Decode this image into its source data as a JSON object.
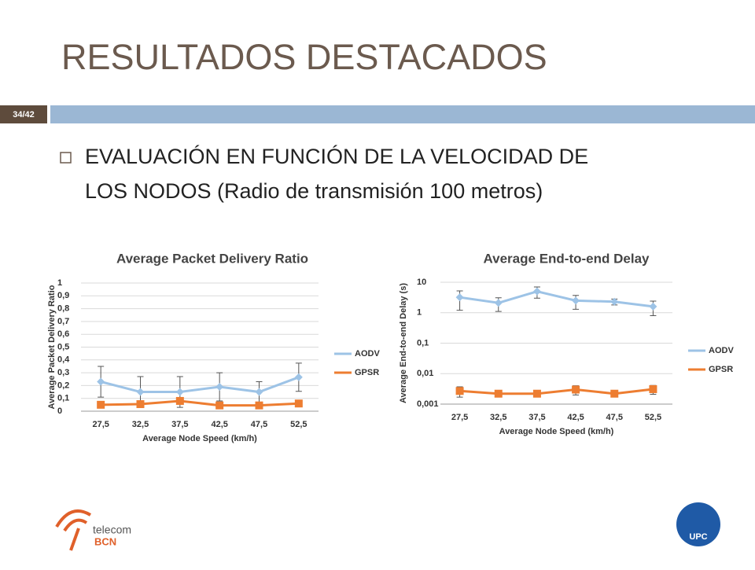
{
  "header": {
    "title": "RESULTADOS DESTACADOS",
    "page": "34/42"
  },
  "bullet": {
    "lines": [
      "EVALUACIÓN EN FUNCIÓN DE LA VELOCIDAD DE",
      "LOS NODOS (Radio de transmisión 100 metros)"
    ]
  },
  "logos": {
    "telecom": "telecom",
    "bcn": "BCN",
    "upc": "UPC"
  },
  "chart_data": [
    {
      "type": "line",
      "title": "Average Packet Delivery Ratio",
      "x_label": "Average Node Speed (km/h)",
      "y_label": "Average Packet Delivery Ratio",
      "categories": [
        "27,5",
        "32,5",
        "37,5",
        "42,5",
        "47,5",
        "52,5"
      ],
      "series": [
        {
          "name": "AODV",
          "color": "#9dc3e6",
          "marker": "diamond",
          "values": [
            0.23,
            0.15,
            0.15,
            0.19,
            0.15,
            0.265
          ],
          "errors": [
            0.12,
            0.12,
            0.12,
            0.11,
            0.08,
            0.11
          ]
        },
        {
          "name": "GPSR",
          "color": "#ed7d31",
          "marker": "square",
          "values": [
            0.05,
            0.055,
            0.08,
            0.045,
            0.045,
            0.06
          ],
          "errors": [
            0.02,
            0.02,
            0.02,
            0.02,
            0.015,
            0.02
          ]
        }
      ],
      "ylim": [
        0,
        1
      ],
      "yticks": [
        0,
        {
          "value": 0.1,
          "label": "0,1"
        },
        {
          "value": 0.2,
          "label": "0,2"
        },
        {
          "value": 0.3,
          "label": "0,3"
        },
        {
          "value": 0.4,
          "label": "0,4"
        },
        {
          "value": 0.5,
          "label": "0,5"
        },
        {
          "value": 0.6,
          "label": "0,6"
        },
        {
          "value": 0.7,
          "label": "0,7"
        },
        {
          "value": 0.8,
          "label": "0,8"
        },
        {
          "value": 0.9,
          "label": "0,9"
        },
        1
      ],
      "log_scale": false,
      "grid": true,
      "legend": "right"
    },
    {
      "type": "line",
      "title": "Average End-to-end Delay",
      "x_label": "Average Node Speed (km/h)",
      "y_label": "Average End-to-end Delay (s)",
      "categories": [
        "27,5",
        "32,5",
        "37,5",
        "42,5",
        "47,5",
        "52,5"
      ],
      "series": [
        {
          "name": "AODV",
          "color": "#9dc3e6",
          "marker": "diamond",
          "values": [
            3.2,
            2.1,
            5,
            2.5,
            2.3,
            1.6
          ],
          "errors": [
            2,
            1,
            2,
            1.2,
            0.5,
            0.8
          ]
        },
        {
          "name": "GPSR",
          "color": "#ed7d31",
          "marker": "square",
          "values": [
            0.0027,
            0.0022,
            0.0022,
            0.003,
            0.0022,
            0.0031
          ],
          "errors": [
            0.001,
            0.0003,
            0.0003,
            0.001,
            0.0003,
            0.001
          ]
        }
      ],
      "ylim": [
        0.001,
        10
      ],
      "yticks": [
        {
          "value": 0.001,
          "label": "0,001"
        },
        {
          "value": 0.01,
          "label": "0,01"
        },
        {
          "value": 0.1,
          "label": "0,1"
        },
        1,
        10
      ],
      "log_scale": true,
      "grid": true,
      "legend": "right"
    }
  ]
}
